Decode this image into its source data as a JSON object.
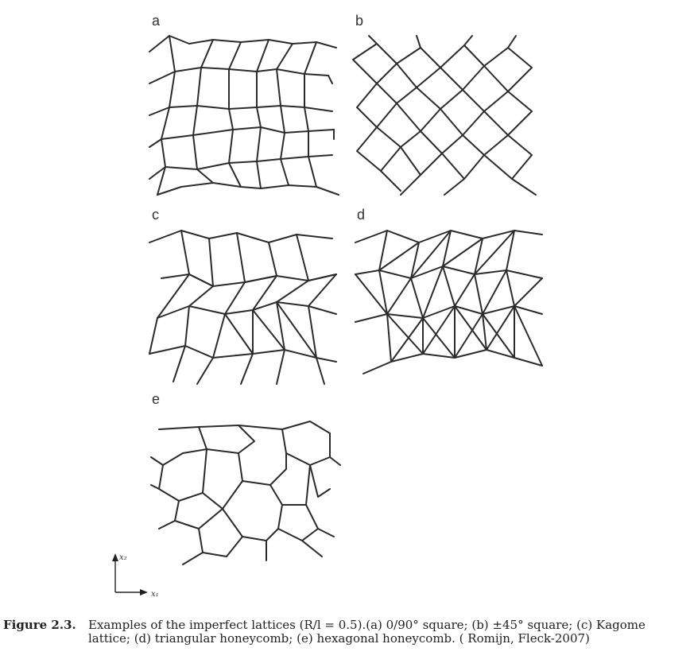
{
  "panels": [
    {
      "label": "a"
    },
    {
      "label": "b"
    },
    {
      "label": "c"
    },
    {
      "label": "d"
    },
    {
      "label": "e"
    }
  ],
  "axes": {
    "x_label": "x₁",
    "y_label": "x₂"
  },
  "caption": {
    "label": "Figure 2.3.",
    "text": "Examples of the imperfect lattices (R/l = 0.5).(a) 0/90° square; (b) ±45° square; (c) Kagome lattice; (d) triangular honeycomb; (e) hexagonal honeycomb. ( Romijn, Fleck-2007)"
  }
}
